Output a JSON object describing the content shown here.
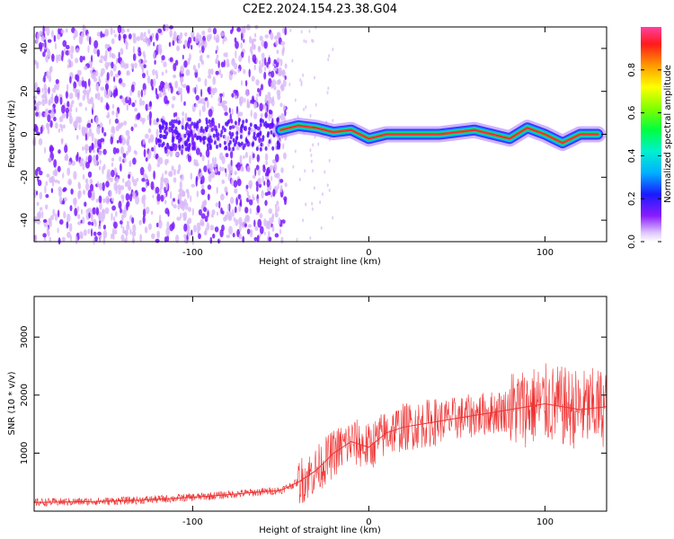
{
  "title": "C2E2.2024.154.23.38.G04",
  "colors": {
    "snr_line": "#ee3333",
    "axis": "#000000",
    "spectrum_low": "#d8b8f8",
    "spectrum_mid": "#7a1aff"
  },
  "chart_data": [
    {
      "type": "heatmap",
      "xlabel": "Height of straight line (km)",
      "ylabel": "Frequency (Hz)",
      "xlim": [
        -190,
        135
      ],
      "ylim": [
        -50,
        50
      ],
      "x_ticks": [
        -100,
        0,
        100
      ],
      "y_ticks": [
        -40,
        -20,
        0,
        20,
        40
      ],
      "colorbar": {
        "label": "Normalized spectral amplitude",
        "range": [
          0,
          1
        ],
        "ticks": [
          0.0,
          0.2,
          0.4,
          0.6,
          0.8
        ]
      },
      "peak_trace": {
        "x": [
          -50,
          -40,
          -30,
          -20,
          -10,
          0,
          10,
          20,
          30,
          40,
          50,
          60,
          70,
          80,
          90,
          100,
          110,
          120,
          130
        ],
        "y": [
          2,
          4,
          3,
          1,
          2,
          -2,
          0,
          0,
          0,
          0,
          1,
          2,
          0,
          -2,
          3,
          0,
          -4,
          0,
          0
        ]
      }
    },
    {
      "type": "line",
      "xlabel": "Height of straight line (km)",
      "ylabel": "SNR (10 * v/v)",
      "xlim": [
        -190,
        135
      ],
      "ylim": [
        0,
        3700
      ],
      "x_ticks": [
        -100,
        0,
        100
      ],
      "y_ticks": [
        1000,
        2000,
        3000
      ],
      "series": [
        {
          "x": [
            -190,
            -170,
            -150,
            -130,
            -110,
            -90,
            -70,
            -50,
            -40,
            -30,
            -20,
            -10,
            0,
            10,
            20,
            30,
            40,
            50,
            60,
            70,
            80,
            90,
            100,
            110,
            120,
            135
          ],
          "y": [
            150,
            160,
            170,
            190,
            220,
            260,
            310,
            360,
            500,
            700,
            1000,
            1200,
            1100,
            1350,
            1450,
            1500,
            1550,
            1600,
            1650,
            1700,
            1750,
            1800,
            1850,
            1800,
            1750,
            1800
          ]
        }
      ]
    }
  ]
}
